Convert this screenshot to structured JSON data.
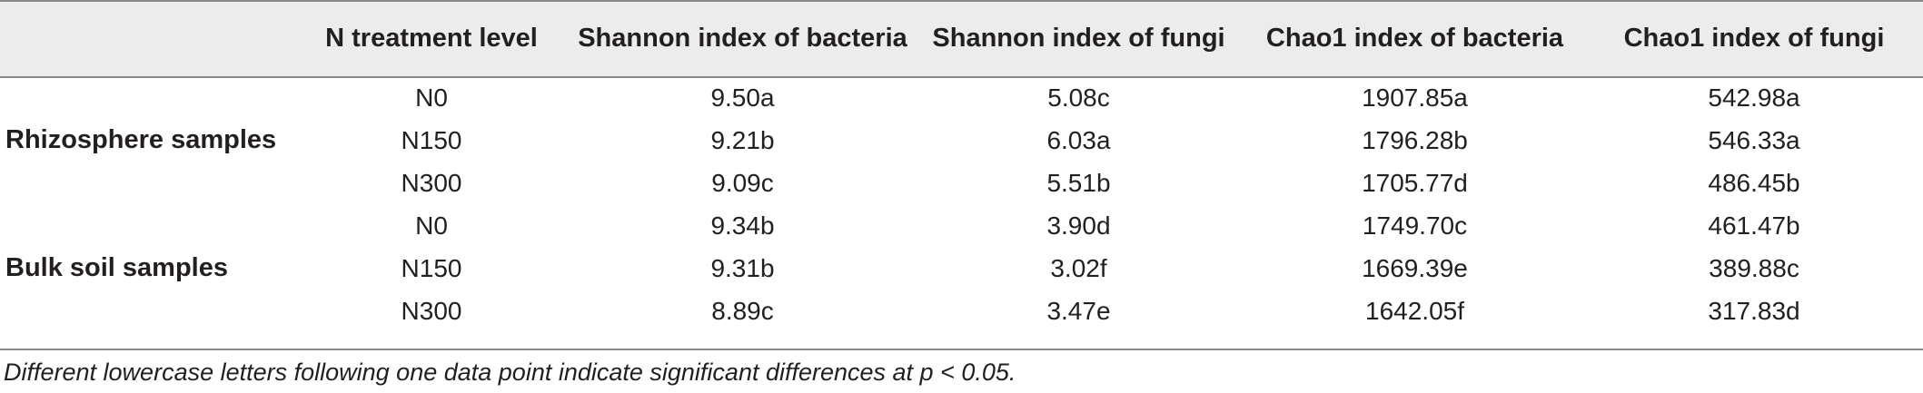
{
  "table": {
    "headers": [
      "",
      "N treatment level",
      "Shannon index of bacteria",
      "Shannon index of fungi",
      "Chao1 index of bacteria",
      "Chao1 index of fungi"
    ],
    "groups": [
      {
        "label": "Rhizosphere samples",
        "rows": [
          [
            "N0",
            "9.50a",
            "5.08c",
            "1907.85a",
            "542.98a"
          ],
          [
            "N150",
            "9.21b",
            "6.03a",
            "1796.28b",
            "546.33a"
          ],
          [
            "N300",
            "9.09c",
            "5.51b",
            "1705.77d",
            "486.45b"
          ]
        ]
      },
      {
        "label": "Bulk soil samples",
        "rows": [
          [
            "N0",
            "9.34b",
            "3.90d",
            "1749.70c",
            "461.47b"
          ],
          [
            "N150",
            "9.31b",
            "3.02f",
            "1669.39e",
            "389.88c"
          ],
          [
            "N300",
            "8.89c",
            "3.47e",
            "1642.05f",
            "317.83d"
          ]
        ]
      }
    ]
  },
  "footnote": "Different lowercase letters following one data point indicate significant differences at p < 0.05."
}
